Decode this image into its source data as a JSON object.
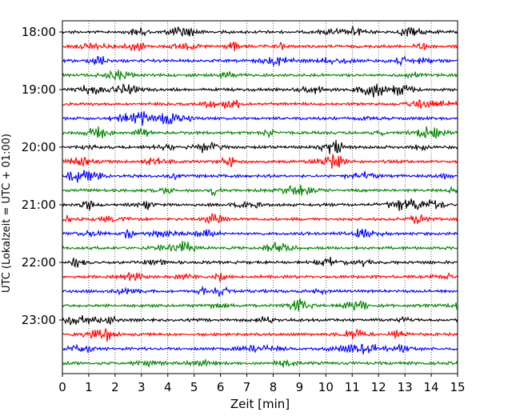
{
  "chart_data": {
    "type": "line",
    "title": "",
    "xlabel": "Zeit  [min]",
    "ylabel": "UTC (Lokalzeit = UTC + 01:00)",
    "xlim": [
      0,
      15
    ],
    "x_ticks": [
      "0",
      "1",
      "2",
      "3",
      "4",
      "5",
      "6",
      "7",
      "8",
      "9",
      "10",
      "11",
      "12",
      "13",
      "14",
      "15"
    ],
    "y_ticks": [
      "18:00",
      "19:00",
      "20:00",
      "21:00",
      "22:00",
      "23:00"
    ],
    "y_tick_rows": [
      0,
      4,
      8,
      12,
      16,
      20
    ],
    "grid": "x-dotted",
    "trace_count": 24,
    "trace_interval_min": 15,
    "trace_colors": [
      "#000000",
      "#ff0000",
      "#0000ff",
      "#008000"
    ]
  }
}
